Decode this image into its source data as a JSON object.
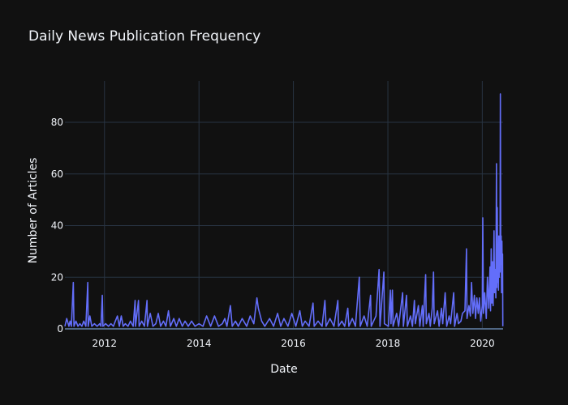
{
  "chart_data": {
    "type": "line",
    "title": "Daily News Publication Frequency",
    "xlabel": "Date",
    "ylabel": "Number of Articles",
    "xlim": [
      "2011-03-01",
      "2020-06-10"
    ],
    "ylim": [
      0,
      96
    ],
    "x_ticks": [
      {
        "label": "2012",
        "value": "2012-01-01"
      },
      {
        "label": "2014",
        "value": "2014-01-01"
      },
      {
        "label": "2016",
        "value": "2016-01-01"
      },
      {
        "label": "2018",
        "value": "2018-01-01"
      },
      {
        "label": "2020",
        "value": "2020-01-01"
      }
    ],
    "y_ticks": [
      0,
      20,
      40,
      60,
      80
    ],
    "grid": true,
    "legend": "none",
    "series": [
      {
        "color": "#636efa",
        "points": [
          [
            "2011-03-01",
            1
          ],
          [
            "2011-03-15",
            4
          ],
          [
            "2011-04-01",
            1
          ],
          [
            "2011-04-10",
            3
          ],
          [
            "2011-04-20",
            1
          ],
          [
            "2011-05-05",
            18
          ],
          [
            "2011-05-10",
            1
          ],
          [
            "2011-05-25",
            3
          ],
          [
            "2011-06-10",
            1
          ],
          [
            "2011-06-25",
            2
          ],
          [
            "2011-07-10",
            1
          ],
          [
            "2011-07-25",
            3
          ],
          [
            "2011-08-10",
            1
          ],
          [
            "2011-08-25",
            18
          ],
          [
            "2011-08-28",
            1
          ],
          [
            "2011-09-10",
            5
          ],
          [
            "2011-09-25",
            1
          ],
          [
            "2011-10-15",
            2
          ],
          [
            "2011-11-05",
            1
          ],
          [
            "2011-11-25",
            2
          ],
          [
            "2011-12-05",
            1
          ],
          [
            "2011-12-15",
            13
          ],
          [
            "2011-12-20",
            1
          ],
          [
            "2012-01-10",
            2
          ],
          [
            "2012-02-01",
            1
          ],
          [
            "2012-02-20",
            2
          ],
          [
            "2012-03-10",
            1
          ],
          [
            "2012-03-25",
            3
          ],
          [
            "2012-04-10",
            5
          ],
          [
            "2012-04-25",
            1
          ],
          [
            "2012-05-10",
            5
          ],
          [
            "2012-05-25",
            1
          ],
          [
            "2012-06-10",
            2
          ],
          [
            "2012-07-01",
            1
          ],
          [
            "2012-07-20",
            3
          ],
          [
            "2012-08-10",
            1
          ],
          [
            "2012-08-25",
            11
          ],
          [
            "2012-08-28",
            1
          ],
          [
            "2012-09-20",
            11
          ],
          [
            "2012-09-25",
            1
          ],
          [
            "2012-10-15",
            3
          ],
          [
            "2012-11-05",
            1
          ],
          [
            "2012-11-25",
            11
          ],
          [
            "2012-11-28",
            1
          ],
          [
            "2012-12-20",
            6
          ],
          [
            "2013-01-10",
            1
          ],
          [
            "2013-02-01",
            2
          ],
          [
            "2013-02-20",
            6
          ],
          [
            "2013-03-10",
            1
          ],
          [
            "2013-04-01",
            3
          ],
          [
            "2013-04-20",
            1
          ],
          [
            "2013-05-10",
            7
          ],
          [
            "2013-05-25",
            1
          ],
          [
            "2013-06-20",
            4
          ],
          [
            "2013-07-10",
            1
          ],
          [
            "2013-08-01",
            4
          ],
          [
            "2013-08-25",
            1
          ],
          [
            "2013-09-15",
            3
          ],
          [
            "2013-10-10",
            1
          ],
          [
            "2013-11-05",
            3
          ],
          [
            "2013-12-01",
            1
          ],
          [
            "2014-01-01",
            2
          ],
          [
            "2014-02-01",
            1
          ],
          [
            "2014-03-01",
            5
          ],
          [
            "2014-04-01",
            1
          ],
          [
            "2014-05-01",
            5
          ],
          [
            "2014-06-01",
            1
          ],
          [
            "2014-07-01",
            2
          ],
          [
            "2014-07-20",
            4
          ],
          [
            "2014-08-05",
            1
          ],
          [
            "2014-09-01",
            9
          ],
          [
            "2014-09-15",
            1
          ],
          [
            "2014-10-10",
            3
          ],
          [
            "2014-11-01",
            1
          ],
          [
            "2014-12-01",
            4
          ],
          [
            "2015-01-05",
            1
          ],
          [
            "2015-02-01",
            5
          ],
          [
            "2015-03-01",
            2
          ],
          [
            "2015-03-25",
            12
          ],
          [
            "2015-04-05",
            8
          ],
          [
            "2015-05-01",
            3
          ],
          [
            "2015-05-25",
            1
          ],
          [
            "2015-07-01",
            4
          ],
          [
            "2015-08-01",
            1
          ],
          [
            "2015-09-01",
            6
          ],
          [
            "2015-09-25",
            1
          ],
          [
            "2015-10-20",
            4
          ],
          [
            "2015-11-20",
            1
          ],
          [
            "2015-12-20",
            6
          ],
          [
            "2016-01-20",
            1
          ],
          [
            "2016-02-20",
            7
          ],
          [
            "2016-03-10",
            1
          ],
          [
            "2016-04-01",
            3
          ],
          [
            "2016-05-01",
            1
          ],
          [
            "2016-06-01",
            10
          ],
          [
            "2016-06-10",
            1
          ],
          [
            "2016-07-10",
            3
          ],
          [
            "2016-08-10",
            1
          ],
          [
            "2016-09-01",
            11
          ],
          [
            "2016-09-10",
            1
          ],
          [
            "2016-10-10",
            4
          ],
          [
            "2016-11-10",
            1
          ],
          [
            "2016-12-10",
            11
          ],
          [
            "2016-12-15",
            1
          ],
          [
            "2017-01-10",
            3
          ],
          [
            "2017-02-01",
            1
          ],
          [
            "2017-02-25",
            8
          ],
          [
            "2017-03-05",
            1
          ],
          [
            "2017-04-01",
            4
          ],
          [
            "2017-04-25",
            1
          ],
          [
            "2017-05-25",
            20
          ],
          [
            "2017-06-01",
            1
          ],
          [
            "2017-07-01",
            5
          ],
          [
            "2017-07-25",
            1
          ],
          [
            "2017-08-20",
            13
          ],
          [
            "2017-08-25",
            1
          ],
          [
            "2017-10-01",
            5
          ],
          [
            "2017-10-25",
            23
          ],
          [
            "2017-11-01",
            1
          ],
          [
            "2017-12-01",
            22
          ],
          [
            "2017-12-05",
            2
          ],
          [
            "2018-01-05",
            1
          ],
          [
            "2018-01-20",
            15
          ],
          [
            "2018-01-25",
            2
          ],
          [
            "2018-02-05",
            15
          ],
          [
            "2018-02-10",
            1
          ],
          [
            "2018-03-10",
            6
          ],
          [
            "2018-03-25",
            1
          ],
          [
            "2018-04-25",
            14
          ],
          [
            "2018-05-01",
            1
          ],
          [
            "2018-05-25",
            13
          ],
          [
            "2018-06-01",
            1
          ],
          [
            "2018-06-25",
            5
          ],
          [
            "2018-07-10",
            1
          ],
          [
            "2018-07-25",
            11
          ],
          [
            "2018-08-01",
            2
          ],
          [
            "2018-08-25",
            9
          ],
          [
            "2018-09-05",
            1
          ],
          [
            "2018-09-25",
            9
          ],
          [
            "2018-10-01",
            1
          ],
          [
            "2018-10-20",
            21
          ],
          [
            "2018-10-25",
            2
          ],
          [
            "2018-11-15",
            6
          ],
          [
            "2018-11-25",
            1
          ],
          [
            "2018-12-10",
            8
          ],
          [
            "2018-12-20",
            22
          ],
          [
            "2018-12-25",
            2
          ],
          [
            "2019-01-20",
            7
          ],
          [
            "2019-02-01",
            1
          ],
          [
            "2019-02-20",
            8
          ],
          [
            "2019-03-01",
            2
          ],
          [
            "2019-03-20",
            14
          ],
          [
            "2019-04-01",
            1
          ],
          [
            "2019-04-20",
            5
          ],
          [
            "2019-05-01",
            2
          ],
          [
            "2019-05-25",
            14
          ],
          [
            "2019-06-01",
            1
          ],
          [
            "2019-06-20",
            6
          ],
          [
            "2019-07-01",
            2
          ],
          [
            "2019-07-20",
            3
          ],
          [
            "2019-08-01",
            6
          ],
          [
            "2019-08-20",
            7
          ],
          [
            "2019-09-01",
            31
          ],
          [
            "2019-09-05",
            4
          ],
          [
            "2019-09-20",
            9
          ],
          [
            "2019-10-01",
            5
          ],
          [
            "2019-10-10",
            18
          ],
          [
            "2019-10-20",
            6
          ],
          [
            "2019-11-01",
            13
          ],
          [
            "2019-11-10",
            4
          ],
          [
            "2019-11-20",
            12
          ],
          [
            "2019-12-01",
            6
          ],
          [
            "2019-12-10",
            12
          ],
          [
            "2019-12-20",
            3
          ],
          [
            "2020-01-01",
            9
          ],
          [
            "2020-01-05",
            43
          ],
          [
            "2020-01-10",
            6
          ],
          [
            "2020-01-20",
            14
          ],
          [
            "2020-02-01",
            4
          ],
          [
            "2020-02-10",
            20
          ],
          [
            "2020-02-20",
            8
          ],
          [
            "2020-03-01",
            24
          ],
          [
            "2020-03-05",
            7
          ],
          [
            "2020-03-10",
            31
          ],
          [
            "2020-03-15",
            10
          ],
          [
            "2020-03-20",
            26
          ],
          [
            "2020-03-25",
            9
          ],
          [
            "2020-04-01",
            38
          ],
          [
            "2020-04-05",
            14
          ],
          [
            "2020-04-10",
            23
          ],
          [
            "2020-04-15",
            12
          ],
          [
            "2020-04-20",
            64
          ],
          [
            "2020-04-23",
            16
          ],
          [
            "2020-04-26",
            47
          ],
          [
            "2020-04-29",
            18
          ],
          [
            "2020-05-02",
            30
          ],
          [
            "2020-05-05",
            15
          ],
          [
            "2020-05-08",
            36
          ],
          [
            "2020-05-11",
            20
          ],
          [
            "2020-05-14",
            33
          ],
          [
            "2020-05-17",
            22
          ],
          [
            "2020-05-20",
            91
          ],
          [
            "2020-05-23",
            25
          ],
          [
            "2020-05-26",
            36
          ],
          [
            "2020-05-29",
            14
          ],
          [
            "2020-06-01",
            34
          ],
          [
            "2020-06-04",
            20
          ],
          [
            "2020-06-06",
            29
          ],
          [
            "2020-06-08",
            1
          ]
        ]
      }
    ]
  }
}
